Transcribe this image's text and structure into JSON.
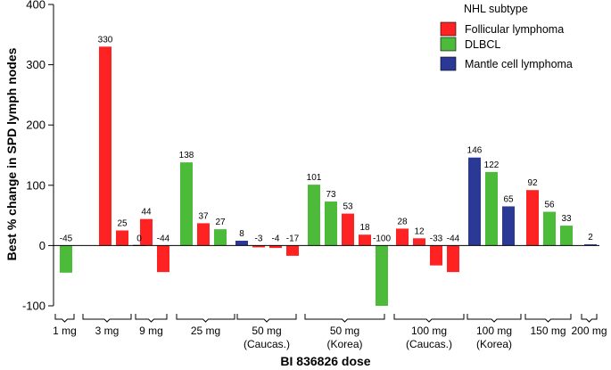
{
  "chart_data": {
    "type": "bar",
    "title": "",
    "xlabel": "BI 836826 dose",
    "ylabel": "Best % change in SPD lymph nodes",
    "ylim": [
      -100,
      400
    ],
    "yticks": [
      -100,
      0,
      100,
      200,
      300,
      400
    ],
    "legend": {
      "title": "NHL subtype",
      "position": "top-right",
      "entries": [
        {
          "key": "FL",
          "label": "Follicular lymphoma",
          "color": "#ff2222"
        },
        {
          "key": "DLBCL",
          "label": "DLBCL",
          "color": "#4cbb3a"
        },
        {
          "key": "MCL",
          "label": "Mantle cell lymphoma",
          "color": "#2a3896"
        }
      ]
    },
    "groups": [
      {
        "label": [
          "1 mg"
        ],
        "bars": [
          {
            "value": -45,
            "label": "-45",
            "subtype": "DLBCL"
          }
        ]
      },
      {
        "label": [
          "3 mg"
        ],
        "bars": [
          {
            "value": 330,
            "label": "330",
            "subtype": "FL"
          },
          {
            "value": 25,
            "label": "25",
            "subtype": "FL"
          },
          {
            "value": 0,
            "label": "0",
            "subtype": "FL"
          }
        ]
      },
      {
        "label": [
          "9 mg"
        ],
        "bars": [
          {
            "value": 44,
            "label": "44",
            "subtype": "FL"
          },
          {
            "value": -44,
            "label": "-44",
            "subtype": "FL"
          }
        ]
      },
      {
        "label": [
          "25 mg"
        ],
        "bars": [
          {
            "value": 138,
            "label": "138",
            "subtype": "DLBCL"
          },
          {
            "value": 37,
            "label": "37",
            "subtype": "FL"
          },
          {
            "value": 27,
            "label": "27",
            "subtype": "DLBCL"
          }
        ]
      },
      {
        "label": [
          "50 mg",
          "(Caucas.)"
        ],
        "bars": [
          {
            "value": 8,
            "label": "8",
            "subtype": "MCL"
          },
          {
            "value": -3,
            "label": "-3",
            "subtype": "FL"
          },
          {
            "value": -4,
            "label": "-4",
            "subtype": "FL"
          },
          {
            "value": -17,
            "label": "-17",
            "subtype": "FL"
          }
        ]
      },
      {
        "label": [
          "50 mg",
          "(Korea)"
        ],
        "bars": [
          {
            "value": 101,
            "label": "101",
            "subtype": "DLBCL"
          },
          {
            "value": 73,
            "label": "73",
            "subtype": "DLBCL"
          },
          {
            "value": 53,
            "label": "53",
            "subtype": "FL"
          },
          {
            "value": 18,
            "label": "18",
            "subtype": "FL"
          },
          {
            "value": -100,
            "label": "-100",
            "subtype": "DLBCL"
          }
        ]
      },
      {
        "label": [
          "100 mg",
          "(Caucas.)"
        ],
        "bars": [
          {
            "value": 28,
            "label": "28",
            "subtype": "FL"
          },
          {
            "value": 12,
            "label": "12",
            "subtype": "FL"
          },
          {
            "value": -33,
            "label": "-33",
            "subtype": "FL"
          },
          {
            "value": -44,
            "label": "-44",
            "subtype": "FL"
          }
        ]
      },
      {
        "label": [
          "100 mg",
          "(Korea)"
        ],
        "bars": [
          {
            "value": 146,
            "label": "146",
            "subtype": "MCL"
          },
          {
            "value": 122,
            "label": "122",
            "subtype": "DLBCL"
          },
          {
            "value": 65,
            "label": "65",
            "subtype": "MCL"
          }
        ]
      },
      {
        "label": [
          "150 mg"
        ],
        "bars": [
          {
            "value": 92,
            "label": "92",
            "subtype": "FL"
          },
          {
            "value": 56,
            "label": "56",
            "subtype": "DLBCL"
          },
          {
            "value": 33,
            "label": "33",
            "subtype": "DLBCL"
          }
        ]
      },
      {
        "label": [
          "200 mg"
        ],
        "bars": [
          {
            "value": 2,
            "label": "2",
            "subtype": "MCL"
          }
        ]
      }
    ]
  }
}
